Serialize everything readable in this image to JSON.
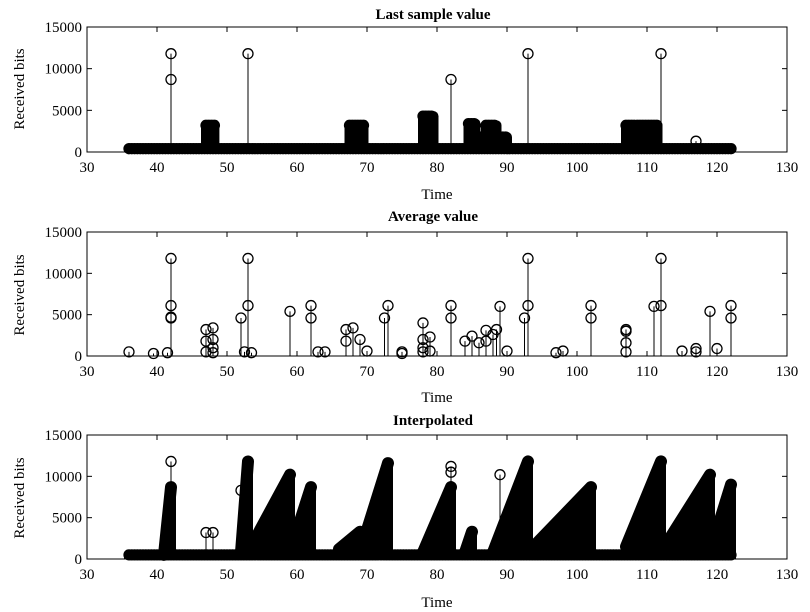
{
  "chart_data": [
    {
      "type": "scatter",
      "style": "stem",
      "title": "Last sample value",
      "xlabel": "Time",
      "ylabel": "Received bits",
      "xlim": [
        30,
        130
      ],
      "ylim": [
        0,
        15000
      ],
      "xticks": [
        30,
        40,
        50,
        60,
        70,
        80,
        90,
        100,
        110,
        120,
        130
      ],
      "yticks": [
        0,
        5000,
        10000,
        15000
      ],
      "marker": "open-circle",
      "color": "#000000",
      "dense": [
        {
          "x0": 36,
          "x1": 122,
          "y": 400
        },
        {
          "x0": 47,
          "x1": 48.2,
          "y": 3200
        },
        {
          "x0": 67.5,
          "x1": 69.5,
          "y": 3200
        },
        {
          "x0": 78,
          "x1": 79.5,
          "y": 4300
        },
        {
          "x0": 84.5,
          "x1": 85.5,
          "y": 3400
        },
        {
          "x0": 87,
          "x1": 88.5,
          "y": 3200
        },
        {
          "x0": 85,
          "x1": 90,
          "y": 1800
        },
        {
          "x0": 107,
          "x1": 111.5,
          "y": 3200
        }
      ],
      "stems": [
        {
          "x": 42,
          "y": 11800
        },
        {
          "x": 42,
          "y": 8700
        },
        {
          "x": 53,
          "y": 11800
        },
        {
          "x": 82,
          "y": 8700
        },
        {
          "x": 93,
          "y": 11800
        },
        {
          "x": 112,
          "y": 11800
        },
        {
          "x": 117,
          "y": 1300
        }
      ]
    },
    {
      "type": "scatter",
      "style": "stem",
      "title": "Average value",
      "xlabel": "Time",
      "ylabel": "Received bits",
      "xlim": [
        30,
        130
      ],
      "ylim": [
        0,
        15000
      ],
      "xticks": [
        30,
        40,
        50,
        60,
        70,
        80,
        90,
        100,
        110,
        120,
        130
      ],
      "yticks": [
        0,
        5000,
        10000,
        15000
      ],
      "marker": "open-circle",
      "color": "#000000",
      "stems": [
        {
          "x": 36,
          "y": 500
        },
        {
          "x": 39.5,
          "y": 300
        },
        {
          "x": 41.5,
          "y": 400
        },
        {
          "x": 42,
          "y": 11800
        },
        {
          "x": 42,
          "y": 6100
        },
        {
          "x": 42,
          "y": 4700
        },
        {
          "x": 42,
          "y": 4600
        },
        {
          "x": 47,
          "y": 3200
        },
        {
          "x": 47,
          "y": 1800
        },
        {
          "x": 47,
          "y": 500
        },
        {
          "x": 48,
          "y": 3400
        },
        {
          "x": 48,
          "y": 2000
        },
        {
          "x": 48,
          "y": 1000
        },
        {
          "x": 48,
          "y": 400
        },
        {
          "x": 52,
          "y": 4600
        },
        {
          "x": 52.5,
          "y": 500
        },
        {
          "x": 53,
          "y": 11800
        },
        {
          "x": 53,
          "y": 6100
        },
        {
          "x": 53.5,
          "y": 400
        },
        {
          "x": 59,
          "y": 5400
        },
        {
          "x": 62,
          "y": 6100
        },
        {
          "x": 62,
          "y": 4600
        },
        {
          "x": 63,
          "y": 500
        },
        {
          "x": 64,
          "y": 500
        },
        {
          "x": 67,
          "y": 3200
        },
        {
          "x": 67,
          "y": 1800
        },
        {
          "x": 68,
          "y": 3400
        },
        {
          "x": 69,
          "y": 2000
        },
        {
          "x": 70,
          "y": 600
        },
        {
          "x": 72.5,
          "y": 4600
        },
        {
          "x": 73,
          "y": 6100
        },
        {
          "x": 75,
          "y": 500
        },
        {
          "x": 75,
          "y": 300
        },
        {
          "x": 78,
          "y": 4000
        },
        {
          "x": 78,
          "y": 2000
        },
        {
          "x": 78,
          "y": 1000
        },
        {
          "x": 78,
          "y": 500
        },
        {
          "x": 79,
          "y": 2300
        },
        {
          "x": 79,
          "y": 600
        },
        {
          "x": 82,
          "y": 6100
        },
        {
          "x": 82,
          "y": 4600
        },
        {
          "x": 84,
          "y": 1800
        },
        {
          "x": 85,
          "y": 2400
        },
        {
          "x": 86,
          "y": 1600
        },
        {
          "x": 87,
          "y": 3100
        },
        {
          "x": 87,
          "y": 1800
        },
        {
          "x": 88,
          "y": 2600
        },
        {
          "x": 88.5,
          "y": 3200
        },
        {
          "x": 89,
          "y": 6000
        },
        {
          "x": 90,
          "y": 600
        },
        {
          "x": 92.5,
          "y": 4600
        },
        {
          "x": 93,
          "y": 11800
        },
        {
          "x": 93,
          "y": 6100
        },
        {
          "x": 97,
          "y": 400
        },
        {
          "x": 98,
          "y": 600
        },
        {
          "x": 102,
          "y": 6100
        },
        {
          "x": 102,
          "y": 4600
        },
        {
          "x": 107,
          "y": 3200
        },
        {
          "x": 107,
          "y": 3000
        },
        {
          "x": 107,
          "y": 1600
        },
        {
          "x": 107,
          "y": 500
        },
        {
          "x": 111,
          "y": 6000
        },
        {
          "x": 112,
          "y": 11800
        },
        {
          "x": 112,
          "y": 6100
        },
        {
          "x": 115,
          "y": 600
        },
        {
          "x": 117,
          "y": 900
        },
        {
          "x": 117,
          "y": 500
        },
        {
          "x": 119,
          "y": 5400
        },
        {
          "x": 120,
          "y": 900
        },
        {
          "x": 122,
          "y": 6100
        },
        {
          "x": 122,
          "y": 4600
        }
      ]
    },
    {
      "type": "scatter",
      "style": "stem",
      "title": "Interpolated",
      "xlabel": "Time",
      "ylabel": "Received bits",
      "xlim": [
        30,
        130
      ],
      "ylim": [
        0,
        15000
      ],
      "xticks": [
        30,
        40,
        50,
        60,
        70,
        80,
        90,
        100,
        110,
        120,
        130
      ],
      "yticks": [
        0,
        5000,
        10000,
        15000
      ],
      "marker": "open-circle",
      "color": "#000000",
      "dense": [
        {
          "x0": 36,
          "x1": 122,
          "y": 500
        }
      ],
      "ramps": [
        {
          "x0": 41,
          "x1": 42,
          "y0": 500,
          "y1": 8700
        },
        {
          "x0": 52,
          "x1": 53,
          "y0": 800,
          "y1": 11800
        },
        {
          "x0": 53,
          "x1": 59,
          "y0": 800,
          "y1": 10200
        },
        {
          "x0": 59,
          "x1": 62,
          "y0": 800,
          "y1": 8700
        },
        {
          "x0": 66,
          "x1": 69,
          "y0": 1200,
          "y1": 3300
        },
        {
          "x0": 69,
          "x1": 73,
          "y0": 800,
          "y1": 11600
        },
        {
          "x0": 78,
          "x1": 82,
          "y0": 800,
          "y1": 8700
        },
        {
          "x0": 84,
          "x1": 85,
          "y0": 800,
          "y1": 3300
        },
        {
          "x0": 88,
          "x1": 93,
          "y0": 800,
          "y1": 11800
        },
        {
          "x0": 93,
          "x1": 102,
          "y0": 800,
          "y1": 8700
        },
        {
          "x0": 107,
          "x1": 112,
          "y0": 1500,
          "y1": 11800
        },
        {
          "x0": 112,
          "x1": 119,
          "y0": 800,
          "y1": 10200
        },
        {
          "x0": 119,
          "x1": 122,
          "y0": 800,
          "y1": 9000
        }
      ],
      "stems": [
        {
          "x": 42,
          "y": 11800
        },
        {
          "x": 42,
          "y": 8700
        },
        {
          "x": 47,
          "y": 3200
        },
        {
          "x": 48,
          "y": 3200
        },
        {
          "x": 52,
          "y": 8300
        },
        {
          "x": 53,
          "y": 11800
        },
        {
          "x": 59,
          "y": 10200
        },
        {
          "x": 62,
          "y": 8700
        },
        {
          "x": 73,
          "y": 11600
        },
        {
          "x": 82,
          "y": 11200
        },
        {
          "x": 82,
          "y": 10500
        },
        {
          "x": 89,
          "y": 10200
        },
        {
          "x": 93,
          "y": 11800
        },
        {
          "x": 102,
          "y": 8700
        },
        {
          "x": 112,
          "y": 11800
        },
        {
          "x": 119,
          "y": 10200
        },
        {
          "x": 122,
          "y": 9000
        }
      ]
    }
  ]
}
